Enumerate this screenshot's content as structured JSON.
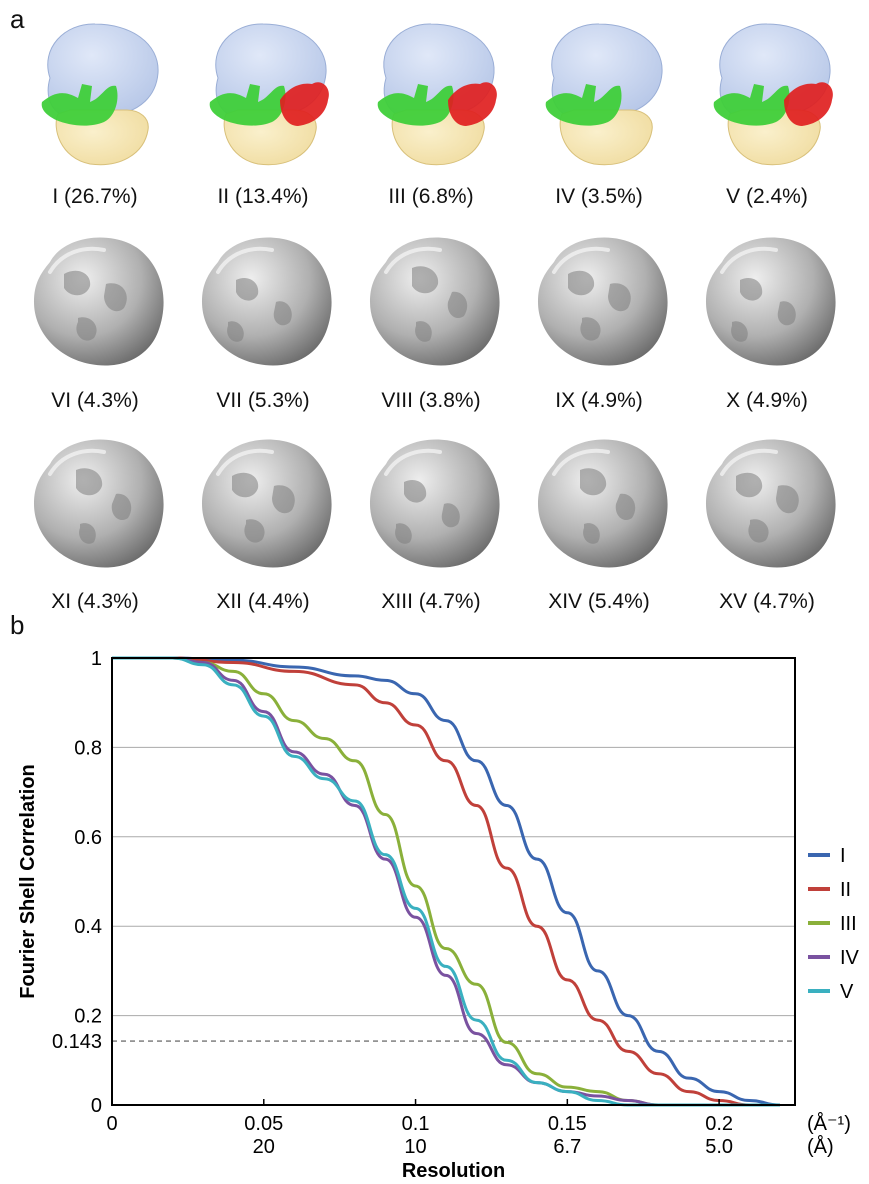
{
  "panel_a": {
    "letter": "a",
    "classes": [
      {
        "label": "I  (26.7%)",
        "type": "colored",
        "has_red": false
      },
      {
        "label": "II  (13.4%)",
        "type": "colored",
        "has_red": true
      },
      {
        "label": "III (6.8%)",
        "type": "colored",
        "has_red": true
      },
      {
        "label": "IV (3.5%)",
        "type": "colored",
        "has_red": false
      },
      {
        "label": "V (2.4%)",
        "type": "colored",
        "has_red": true
      },
      {
        "label": "VI  (4.3%)",
        "type": "gray"
      },
      {
        "label": "VII  (5.3%)",
        "type": "gray"
      },
      {
        "label": "VIII (3.8%)",
        "type": "gray"
      },
      {
        "label": "IX (4.9%)",
        "type": "gray"
      },
      {
        "label": "X (4.9%)",
        "type": "gray"
      },
      {
        "label": "XI  (4.3%)",
        "type": "gray"
      },
      {
        "label": "XII  (4.4%)",
        "type": "gray"
      },
      {
        "label": "XIII (4.7%)",
        "type": "gray"
      },
      {
        "label": "XIV (5.4%)",
        "type": "gray"
      },
      {
        "label": "XV (4.7%)",
        "type": "gray"
      }
    ],
    "colors": {
      "large_subunit": "#b8c8e8",
      "small_subunit": "#f0dca0",
      "green": "#3fcf3a",
      "red": "#e02020",
      "gray": "#b0b0b0"
    }
  },
  "chart_data": {
    "panel_letter": "b",
    "type": "line",
    "title": "",
    "xlabel": "Resolution",
    "ylabel": "Fourier Shell Correlation",
    "xlim": [
      0,
      0.225
    ],
    "ylim": [
      0,
      1
    ],
    "x_ticks": [
      {
        "v": 0,
        "label": "0",
        "label2": ""
      },
      {
        "v": 0.05,
        "label": "0.05",
        "label2": "20"
      },
      {
        "v": 0.1,
        "label": "0.1",
        "label2": "10"
      },
      {
        "v": 0.15,
        "label": "0.15",
        "label2": "6.7"
      },
      {
        "v": 0.2,
        "label": "0.2",
        "label2": "5.0"
      }
    ],
    "x_unit_labels": [
      "(Å⁻¹)",
      "(Å)"
    ],
    "y_ticks": [
      0,
      0.2,
      0.4,
      0.6,
      0.8,
      1
    ],
    "y_tick_labels": [
      "0",
      "0.2",
      "0.4",
      "0.6",
      "0.8",
      "1"
    ],
    "threshold": {
      "value": 0.143,
      "label": "0.143"
    },
    "grid": "horizontal",
    "legend": "right",
    "series": [
      {
        "name": "I",
        "color": "#3a66b0",
        "x": [
          0,
          0.02,
          0.04,
          0.06,
          0.08,
          0.09,
          0.1,
          0.11,
          0.12,
          0.13,
          0.14,
          0.15,
          0.16,
          0.17,
          0.18,
          0.19,
          0.2,
          0.21,
          0.22
        ],
        "y": [
          1,
          1,
          0.995,
          0.98,
          0.96,
          0.95,
          0.92,
          0.86,
          0.77,
          0.67,
          0.55,
          0.43,
          0.3,
          0.2,
          0.12,
          0.06,
          0.03,
          0.01,
          0
        ]
      },
      {
        "name": "II",
        "color": "#c0403a",
        "x": [
          0,
          0.02,
          0.04,
          0.06,
          0.08,
          0.09,
          0.1,
          0.11,
          0.12,
          0.13,
          0.14,
          0.15,
          0.16,
          0.17,
          0.18,
          0.19,
          0.2,
          0.21,
          0.22
        ],
        "y": [
          1,
          1,
          0.99,
          0.97,
          0.94,
          0.9,
          0.85,
          0.77,
          0.67,
          0.53,
          0.4,
          0.28,
          0.19,
          0.12,
          0.07,
          0.03,
          0.01,
          0,
          0
        ]
      },
      {
        "name": "III",
        "color": "#8ab03a",
        "x": [
          0,
          0.02,
          0.03,
          0.04,
          0.05,
          0.06,
          0.07,
          0.08,
          0.09,
          0.1,
          0.11,
          0.12,
          0.13,
          0.14,
          0.15,
          0.16,
          0.17,
          0.18,
          0.22
        ],
        "y": [
          1,
          1,
          0.99,
          0.97,
          0.92,
          0.86,
          0.82,
          0.77,
          0.65,
          0.49,
          0.35,
          0.27,
          0.14,
          0.07,
          0.04,
          0.03,
          0.01,
          0,
          0
        ]
      },
      {
        "name": "IV",
        "color": "#7a52a0",
        "x": [
          0,
          0.02,
          0.03,
          0.04,
          0.05,
          0.06,
          0.07,
          0.08,
          0.09,
          0.1,
          0.11,
          0.12,
          0.13,
          0.14,
          0.15,
          0.16,
          0.17,
          0.18,
          0.22
        ],
        "y": [
          1,
          1,
          0.99,
          0.95,
          0.88,
          0.79,
          0.74,
          0.67,
          0.55,
          0.42,
          0.29,
          0.16,
          0.09,
          0.05,
          0.03,
          0.02,
          0.01,
          0,
          0
        ]
      },
      {
        "name": "V",
        "color": "#3ab0c0",
        "x": [
          0,
          0.02,
          0.03,
          0.04,
          0.05,
          0.06,
          0.07,
          0.08,
          0.09,
          0.1,
          0.11,
          0.12,
          0.13,
          0.14,
          0.15,
          0.16,
          0.17,
          0.18,
          0.22
        ],
        "y": [
          1,
          1,
          0.985,
          0.94,
          0.87,
          0.78,
          0.73,
          0.68,
          0.56,
          0.44,
          0.31,
          0.19,
          0.1,
          0.05,
          0.03,
          0.01,
          0,
          0,
          0
        ]
      }
    ]
  }
}
